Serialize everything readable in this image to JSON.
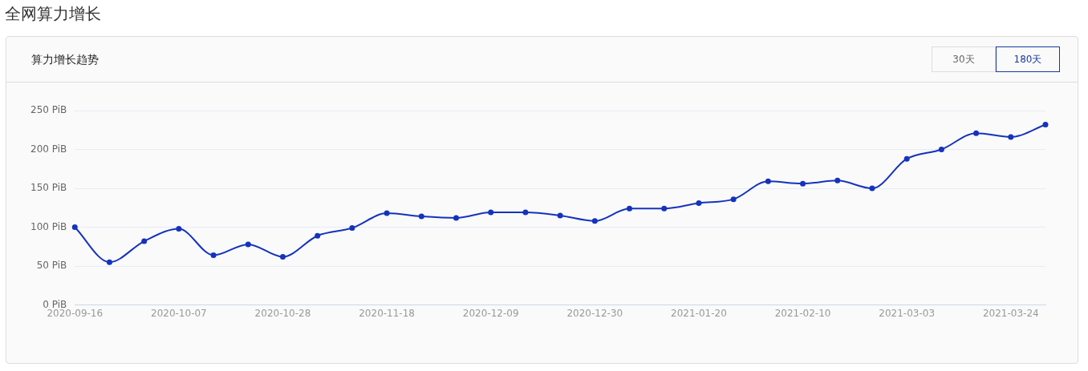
{
  "chart_data": {
    "type": "line",
    "title": "全网算力增长",
    "subtitle": "算力增长趋势",
    "annotations": [
      "30天",
      "180天"
    ],
    "categories": [
      "2020-09-16",
      null,
      null,
      "2020-10-07",
      null,
      null,
      "2020-10-28",
      null,
      null,
      "2020-11-18",
      null,
      null,
      "2020-12-09",
      null,
      null,
      "2020-12-30",
      null,
      null,
      "2021-01-20",
      null,
      null,
      "2021-02-10",
      null,
      null,
      "2021-03-03",
      null,
      null,
      "2021-03-24",
      null
    ],
    "series": [
      {
        "color": "#1533bd",
        "values": [
          100,
          55,
          82,
          98,
          64,
          78,
          62,
          89,
          99,
          118,
          114,
          112,
          119,
          119,
          115,
          108,
          124,
          124,
          131,
          136,
          159,
          156,
          160,
          150,
          188,
          200,
          221,
          216,
          232
        ]
      }
    ],
    "ylim": [
      0,
      250
    ],
    "yticks": [
      {
        "value": 0,
        "label": "0 PiB"
      },
      {
        "value": 50,
        "label": "50 PiB"
      },
      {
        "value": 100,
        "label": "100 PiB"
      },
      {
        "value": 150,
        "label": "150 PiB"
      },
      {
        "value": 200,
        "label": "200 PiB"
      },
      {
        "value": 250,
        "label": "250 PiB"
      }
    ],
    "grid": "y",
    "legend": false,
    "marker": "circle",
    "line_style": "solid"
  }
}
